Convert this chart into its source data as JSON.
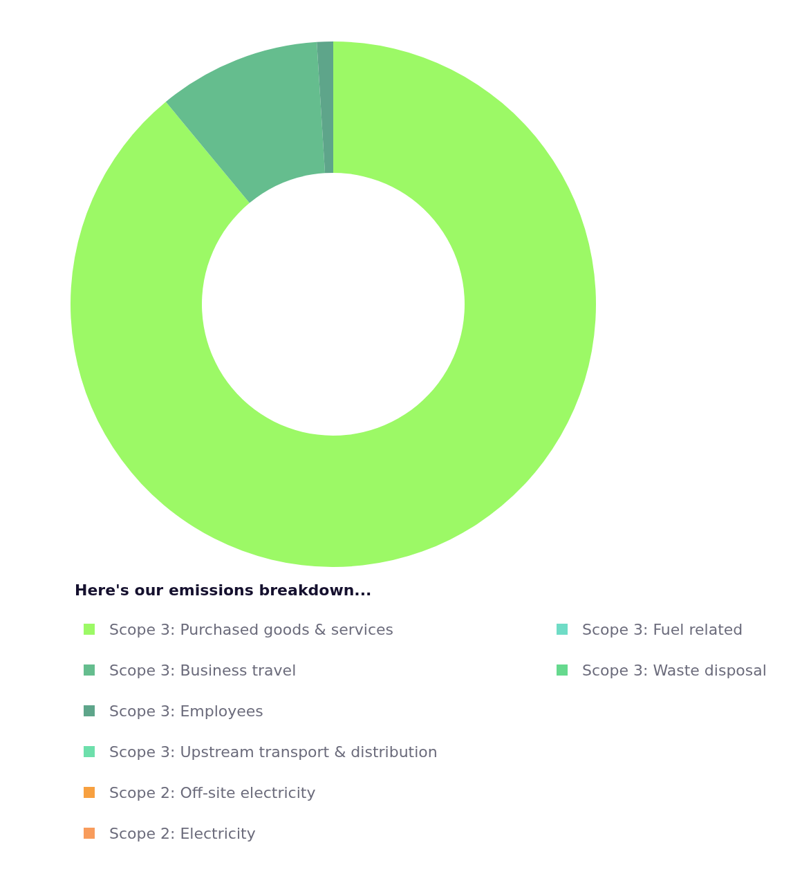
{
  "chart_data": {
    "type": "donut",
    "legend_title": "Here's our emissions breakdown...",
    "legend": "bottom",
    "categories": [
      "Scope 3: Purchased goods & services",
      "Scope 3: Business travel",
      "Scope 3: Employees",
      "Scope 3: Upstream transport & distribution",
      "Scope 2: Off-site electricity",
      "Scope 2: Electricity",
      "Scope 3: Fuel related",
      "Scope 3: Waste disposal"
    ],
    "values": [
      89,
      10,
      1,
      0,
      0,
      0,
      0,
      0
    ],
    "colors": [
      "#9cf966",
      "#65bd8e",
      "#5ea58a",
      "#6ddfab",
      "#f7a040",
      "#f89c5c",
      "#6fdcc6",
      "#66d98e"
    ]
  }
}
